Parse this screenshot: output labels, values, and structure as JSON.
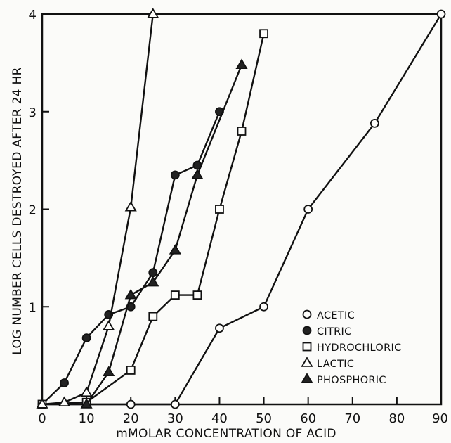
{
  "chart_data": {
    "type": "line",
    "title": "",
    "xlabel": "mMOLAR CONCENTRATION OF ACID",
    "ylabel": "LOG NUMBER CELLS DESTROYED AFTER 24 HR",
    "xlim": [
      0,
      90
    ],
    "ylim": [
      0,
      4
    ],
    "xticks": [
      0,
      10,
      20,
      30,
      40,
      50,
      60,
      70,
      80,
      90
    ],
    "yticks": [
      0,
      1,
      2,
      3,
      4
    ],
    "grid": false,
    "legend_position": "bottom-right",
    "series": [
      {
        "name": "ACETIC",
        "marker": "circle-open",
        "x": [
          0,
          20,
          30,
          40,
          50,
          60,
          75,
          90
        ],
        "y": [
          0,
          0,
          0,
          0.78,
          1.0,
          2.0,
          2.88,
          4.0
        ]
      },
      {
        "name": "CITRIC",
        "marker": "circle-filled",
        "x": [
          0,
          5,
          10,
          15,
          20,
          25,
          30,
          35,
          40
        ],
        "y": [
          0,
          0.22,
          0.68,
          0.92,
          1.0,
          1.35,
          2.35,
          2.45,
          3.0
        ]
      },
      {
        "name": "HYDROCHLORIC",
        "marker": "square-open",
        "x": [
          0,
          10,
          20,
          25,
          30,
          35,
          40,
          45,
          50
        ],
        "y": [
          0,
          0.02,
          0.35,
          0.9,
          1.12,
          1.12,
          2.0,
          2.8,
          3.8
        ]
      },
      {
        "name": "LACTIC",
        "marker": "triangle-open",
        "x": [
          0,
          5,
          10,
          15,
          20,
          25
        ],
        "y": [
          0,
          0.02,
          0.12,
          0.8,
          2.02,
          4.0
        ]
      },
      {
        "name": "PHOSPHORIC",
        "marker": "triangle-filled",
        "x": [
          10,
          15,
          20,
          25,
          30,
          35,
          45
        ],
        "y": [
          0,
          0.33,
          1.12,
          1.25,
          1.58,
          2.35,
          3.48
        ]
      }
    ]
  }
}
